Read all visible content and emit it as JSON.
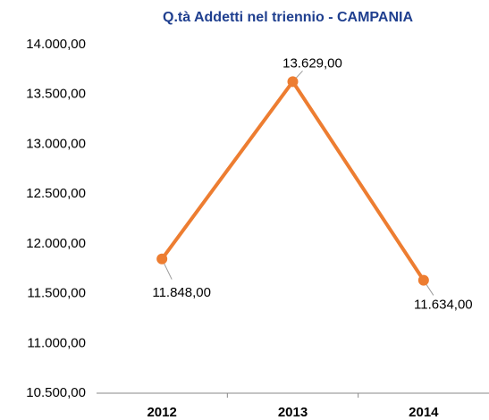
{
  "chart_data": {
    "type": "line",
    "title": "Q.tà Addetti nel triennio - CAMPANIA",
    "categories": [
      "2012",
      "2013",
      "2014"
    ],
    "series": [
      {
        "name": "Addetti",
        "color": "#ed7d31",
        "values": [
          11848,
          13629,
          11634
        ],
        "value_labels": [
          "11.848,00",
          "13.629,00",
          "11.634,00"
        ]
      }
    ],
    "ylim": [
      10500,
      14000
    ],
    "yticks": [
      {
        "value": 10500,
        "label": "10.500,00"
      },
      {
        "value": 11000,
        "label": "11.000,00"
      },
      {
        "value": 11500,
        "label": "11.500,00"
      },
      {
        "value": 12000,
        "label": "12.000,00"
      },
      {
        "value": 12500,
        "label": "12.500,00"
      },
      {
        "value": 13000,
        "label": "13.000,00"
      },
      {
        "value": 13500,
        "label": "13.500,00"
      },
      {
        "value": 14000,
        "label": "14.000,00"
      }
    ],
    "grid": false
  }
}
